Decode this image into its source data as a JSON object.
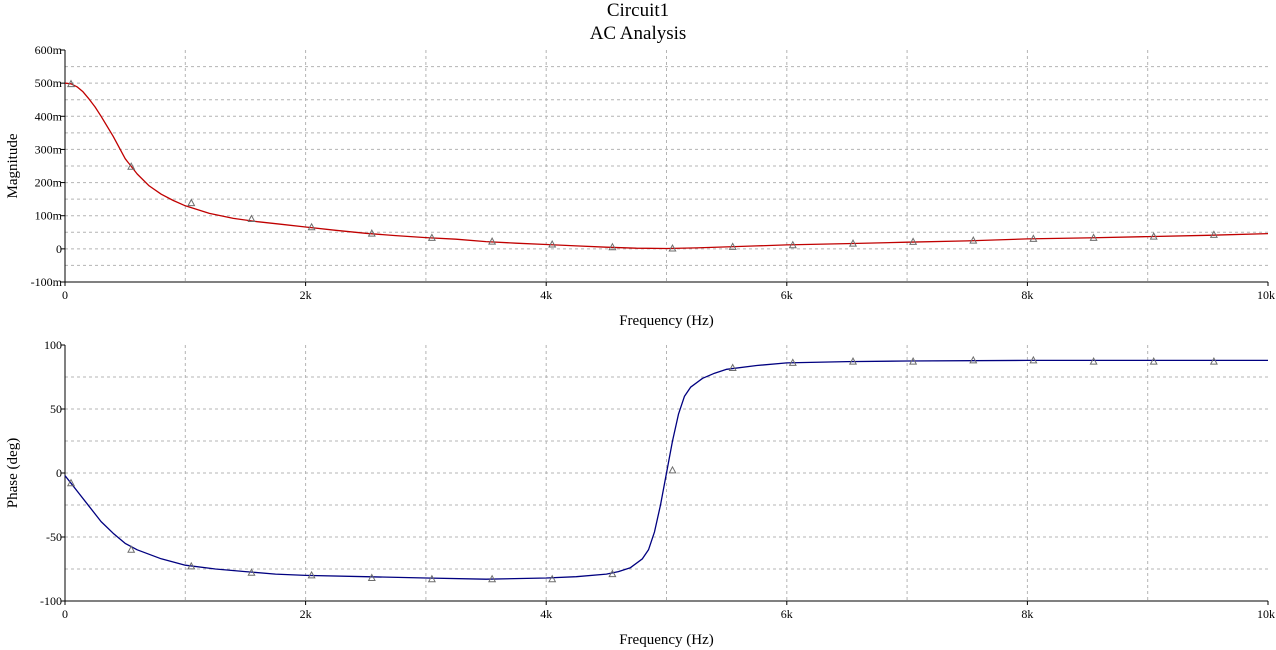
{
  "window": {
    "title": "Circuit1",
    "subtitle": "AC Analysis"
  },
  "colors": {
    "magnitude_trace": "#c00000",
    "phase_trace": "#000080",
    "marker": "#6e6e6e",
    "grid": "#b4b4b4",
    "axis": "#000000"
  },
  "chart_data": [
    {
      "type": "line",
      "title": "",
      "xlabel": "Frequency (Hz)",
      "ylabel": "Magnitude",
      "xlim": [
        0,
        10000
      ],
      "ylim": [
        -0.1,
        0.6
      ],
      "grid": true,
      "x_ticks": [
        {
          "value": 0,
          "label": "0"
        },
        {
          "value": 2000,
          "label": "2k"
        },
        {
          "value": 4000,
          "label": "4k"
        },
        {
          "value": 6000,
          "label": "6k"
        },
        {
          "value": 8000,
          "label": "8k"
        },
        {
          "value": 10000,
          "label": "10k"
        }
      ],
      "y_ticks": [
        {
          "value": 0.6,
          "label": "600m"
        },
        {
          "value": 0.5,
          "label": "500m"
        },
        {
          "value": 0.4,
          "label": "400m"
        },
        {
          "value": 0.3,
          "label": "300m"
        },
        {
          "value": 0.2,
          "label": "200m"
        },
        {
          "value": 0.1,
          "label": "100m"
        },
        {
          "value": 0,
          "label": "0"
        },
        {
          "value": -0.1,
          "label": "-100m"
        }
      ],
      "series": [
        {
          "curve_x": [
            0,
            50,
            100,
            150,
            200,
            250,
            300,
            400,
            500,
            600,
            700,
            800,
            900,
            1000,
            1200,
            1400,
            1600,
            1800,
            2000,
            2250,
            2500,
            2750,
            3000,
            3250,
            3500,
            3750,
            4000,
            4250,
            4500,
            4750,
            5000,
            5250,
            5500,
            5750,
            6000,
            6500,
            7000,
            7500,
            8000,
            8500,
            9000,
            9500,
            10000
          ],
          "curve_y": [
            0.5,
            0.498,
            0.489,
            0.474,
            0.452,
            0.428,
            0.4,
            0.34,
            0.272,
            0.226,
            0.19,
            0.165,
            0.146,
            0.13,
            0.107,
            0.092,
            0.082,
            0.074,
            0.066,
            0.056,
            0.047,
            0.04,
            0.034,
            0.029,
            0.022,
            0.017,
            0.013,
            0.009,
            0.005,
            0.002,
            0.001,
            0.003,
            0.006,
            0.009,
            0.012,
            0.016,
            0.02,
            0.024,
            0.03,
            0.033,
            0.037,
            0.041,
            0.046
          ],
          "markers_x": [
            50,
            550,
            1050,
            1550,
            2050,
            2550,
            3050,
            3550,
            4050,
            4550,
            5050,
            5550,
            6050,
            6550,
            7050,
            7550,
            8050,
            8550,
            9050,
            9550
          ],
          "markers_y": [
            0.497,
            0.248,
            0.138,
            0.09,
            0.065,
            0.046,
            0.033,
            0.022,
            0.013,
            0.005,
            0.001,
            0.006,
            0.011,
            0.016,
            0.021,
            0.025,
            0.03,
            0.033,
            0.037,
            0.042
          ]
        }
      ]
    },
    {
      "type": "line",
      "title": "",
      "xlabel": "Frequency (Hz)",
      "ylabel": "Phase (deg)",
      "xlim": [
        0,
        10000
      ],
      "ylim": [
        -100,
        100
      ],
      "grid": true,
      "x_ticks": [
        {
          "value": 0,
          "label": "0"
        },
        {
          "value": 2000,
          "label": "2k"
        },
        {
          "value": 4000,
          "label": "4k"
        },
        {
          "value": 6000,
          "label": "6k"
        },
        {
          "value": 8000,
          "label": "8k"
        },
        {
          "value": 10000,
          "label": "10k"
        }
      ],
      "y_ticks": [
        {
          "value": 100,
          "label": "100"
        },
        {
          "value": 50,
          "label": "50"
        },
        {
          "value": 0,
          "label": "0"
        },
        {
          "value": -50,
          "label": "-50"
        },
        {
          "value": -100,
          "label": "-100"
        }
      ],
      "series": [
        {
          "curve_x": [
            0,
            50,
            100,
            200,
            300,
            400,
            500,
            600,
            800,
            1000,
            1250,
            1500,
            1750,
            2000,
            2500,
            3000,
            3500,
            4000,
            4250,
            4500,
            4600,
            4700,
            4800,
            4850,
            4900,
            4950,
            5000,
            5050,
            5100,
            5150,
            5200,
            5300,
            5400,
            5500,
            5750,
            6000,
            6500,
            7000,
            8000,
            9000,
            10000
          ],
          "curve_y": [
            -2,
            -8,
            -14,
            -26,
            -38,
            -47,
            -55,
            -60,
            -67,
            -72,
            -75,
            -77,
            -79,
            -80,
            -81,
            -82,
            -83,
            -82,
            -81,
            -79,
            -77,
            -74,
            -67,
            -60,
            -46,
            -25,
            0,
            25,
            46,
            60,
            67,
            74,
            78,
            81,
            84,
            86,
            87,
            87.5,
            88,
            88,
            88
          ],
          "markers_x": [
            50,
            550,
            1050,
            1550,
            2050,
            2550,
            3050,
            3550,
            4050,
            4550,
            5050,
            5550,
            6050,
            6550,
            7050,
            7550,
            8050,
            8550,
            9050,
            9550
          ],
          "markers_y": [
            -8,
            -60,
            -73,
            -78,
            -80,
            -82,
            -83,
            -83,
            -83,
            -79,
            2,
            82,
            86,
            87,
            87,
            88,
            88,
            87,
            87,
            87
          ]
        }
      ]
    }
  ]
}
